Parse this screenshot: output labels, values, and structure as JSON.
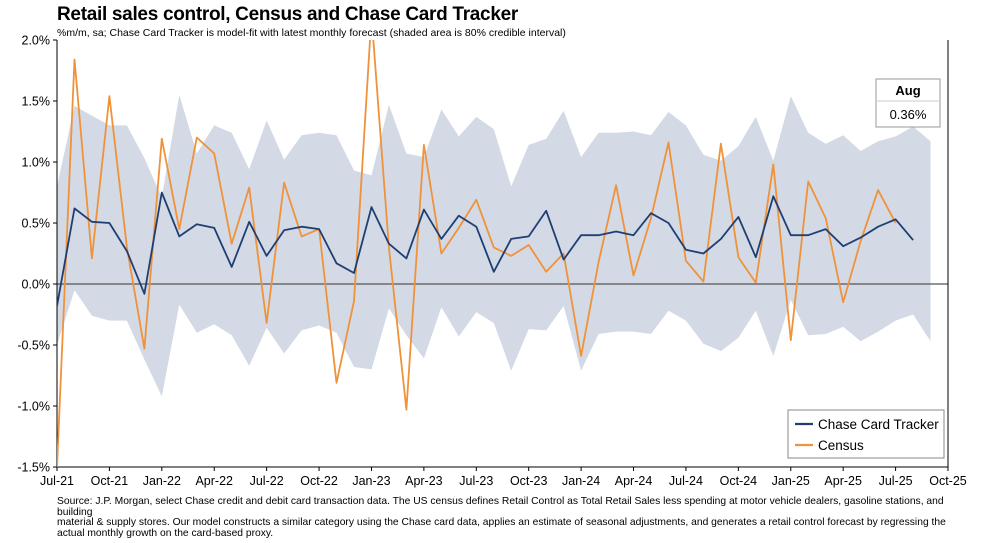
{
  "title": "Retail sales control, Census and Chase Card Tracker",
  "subtitle": "%m/m, sa; Chase Card Tracker is model-fit with latest monthly forecast (shaded area is 80% credible interval)",
  "footnote": {
    "lines": [
      "Source: J.P. Morgan, select Chase credit and debit card transaction data. The US census defines Retail Control as Total Retail Sales less spending at motor vehicle dealers, gasoline stations, and building",
      "material & supply stores. Our model constructs a similar category using the Chase card data, applies an estimate of seasonal adjustments, and generates a retail control forecast by regressing the",
      "actual monthly growth on the card-based proxy."
    ]
  },
  "callout": {
    "label": "Aug",
    "value": "0.36%"
  },
  "colors": {
    "tracker": "#1f3f73",
    "census": "#f0923a",
    "band": "#d3dae5",
    "zero_line": "#555555"
  },
  "chart_data": {
    "type": "line",
    "x_start": "2021-07",
    "x_end": "2025-10",
    "x_ticks": [
      "Jul-21",
      "Oct-21",
      "Jan-22",
      "Apr-22",
      "Jul-22",
      "Oct-22",
      "Jan-23",
      "Apr-23",
      "Jul-23",
      "Oct-23",
      "Jan-24",
      "Apr-24",
      "Jul-24",
      "Oct-24",
      "Jan-25",
      "Apr-25",
      "Jul-25",
      "Oct-25"
    ],
    "y_ticks": [
      "-1.5%",
      "-1.0%",
      "-0.5%",
      "0.0%",
      "0.5%",
      "1.0%",
      "1.5%",
      "2.0%"
    ],
    "ylim": [
      -1.5,
      2.0
    ],
    "legend": "bottom-right",
    "series": [
      {
        "name": "Chase Card Tracker",
        "x": [
          "2021-07",
          "2021-08",
          "2021-09",
          "2021-10",
          "2021-11",
          "2021-12",
          "2022-01",
          "2022-02",
          "2022-03",
          "2022-04",
          "2022-05",
          "2022-06",
          "2022-07",
          "2022-08",
          "2022-09",
          "2022-10",
          "2022-11",
          "2022-12",
          "2023-01",
          "2023-02",
          "2023-03",
          "2023-04",
          "2023-05",
          "2023-06",
          "2023-07",
          "2023-08",
          "2023-09",
          "2023-10",
          "2023-11",
          "2023-12",
          "2024-01",
          "2024-02",
          "2024-03",
          "2024-04",
          "2024-05",
          "2024-06",
          "2024-07",
          "2024-08",
          "2024-09",
          "2024-10",
          "2024-11",
          "2024-12",
          "2025-01",
          "2025-02",
          "2025-03",
          "2025-04",
          "2025-05",
          "2025-06",
          "2025-07",
          "2025-08"
        ],
        "values": [
          -0.18,
          0.62,
          0.51,
          0.5,
          0.27,
          -0.08,
          0.75,
          0.39,
          0.49,
          0.46,
          0.14,
          0.51,
          0.23,
          0.44,
          0.47,
          0.45,
          0.17,
          0.09,
          0.63,
          0.33,
          0.21,
          0.61,
          0.37,
          0.56,
          0.47,
          0.1,
          0.37,
          0.39,
          0.6,
          0.2,
          0.4,
          0.4,
          0.43,
          0.4,
          0.58,
          0.5,
          0.28,
          0.25,
          0.37,
          0.55,
          0.22,
          0.72,
          0.4,
          0.4,
          0.45,
          0.31,
          0.38,
          0.47,
          0.53,
          0.36
        ]
      },
      {
        "name": "Census",
        "x": [
          "2021-07",
          "2021-08",
          "2021-09",
          "2021-10",
          "2021-11",
          "2021-12",
          "2022-01",
          "2022-02",
          "2022-03",
          "2022-04",
          "2022-05",
          "2022-06",
          "2022-07",
          "2022-08",
          "2022-09",
          "2022-10",
          "2022-11",
          "2022-12",
          "2023-01",
          "2023-02",
          "2023-03",
          "2023-04",
          "2023-05",
          "2023-06",
          "2023-07",
          "2023-08",
          "2023-09",
          "2023-10",
          "2023-11",
          "2023-12",
          "2024-01",
          "2024-02",
          "2024-03",
          "2024-04",
          "2024-05",
          "2024-06",
          "2024-07",
          "2024-08",
          "2024-09",
          "2024-10",
          "2024-11",
          "2024-12",
          "2025-01",
          "2025-02",
          "2025-03",
          "2025-04",
          "2025-05",
          "2025-06",
          "2025-07"
        ],
        "values": [
          -1.5,
          1.84,
          0.21,
          1.54,
          0.3,
          -0.53,
          1.19,
          0.45,
          1.2,
          1.07,
          0.33,
          0.79,
          -0.32,
          0.83,
          0.39,
          0.45,
          -0.81,
          -0.14,
          2.2,
          0.3,
          -1.03,
          1.14,
          0.25,
          0.46,
          0.69,
          0.3,
          0.23,
          0.32,
          0.1,
          0.25,
          -0.59,
          0.18,
          0.81,
          0.07,
          0.54,
          1.16,
          0.19,
          0.02,
          1.15,
          0.22,
          0.01,
          0.98,
          -0.46,
          0.84,
          0.54,
          -0.15,
          0.35,
          0.77,
          0.5
        ]
      }
    ],
    "band": {
      "lower": [
        -0.5,
        -0.05,
        -0.26,
        -0.3,
        -0.3,
        -0.62,
        -0.92,
        -0.17,
        -0.4,
        -0.33,
        -0.42,
        -0.67,
        -0.36,
        -0.57,
        -0.38,
        -0.34,
        -0.4,
        -0.68,
        -0.7,
        -0.2,
        -0.42,
        -0.61,
        -0.19,
        -0.43,
        -0.23,
        -0.32,
        -0.71,
        -0.37,
        -0.38,
        -0.18,
        -0.71,
        -0.41,
        -0.39,
        -0.39,
        -0.41,
        -0.22,
        -0.3,
        -0.49,
        -0.55,
        -0.44,
        -0.22,
        -0.59,
        -0.13,
        -0.42,
        -0.41,
        -0.35,
        -0.47,
        -0.39,
        -0.3,
        -0.25,
        -0.47
      ],
      "upper": [
        0.8,
        1.46,
        1.38,
        1.3,
        1.3,
        1.03,
        0.71,
        1.55,
        1.07,
        1.3,
        1.24,
        0.94,
        1.34,
        1.02,
        1.22,
        1.24,
        1.22,
        0.93,
        0.89,
        1.47,
        1.07,
        1.04,
        1.43,
        1.21,
        1.37,
        1.27,
        0.8,
        1.14,
        1.19,
        1.42,
        1.04,
        1.24,
        1.24,
        1.25,
        1.22,
        1.41,
        1.3,
        1.06,
        1.01,
        1.13,
        1.37,
        1.01,
        1.54,
        1.24,
        1.15,
        1.22,
        1.09,
        1.17,
        1.21,
        1.29,
        1.17
      ]
    }
  }
}
